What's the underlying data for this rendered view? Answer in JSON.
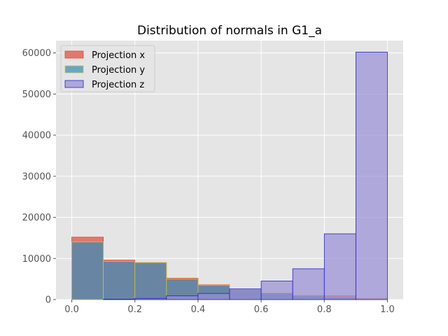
{
  "chart_data": {
    "type": "histogram",
    "title": "Distribution of normals in G1_a",
    "xlabel": "",
    "ylabel": "",
    "xlim": [
      -0.05,
      1.05
    ],
    "ylim": [
      0,
      63000
    ],
    "xticks": [
      0.0,
      0.2,
      0.4,
      0.6,
      0.8,
      1.0
    ],
    "xtick_labels": [
      "0.0",
      "0.2",
      "0.4",
      "0.6",
      "0.8",
      "1.0"
    ],
    "yticks": [
      0,
      10000,
      20000,
      30000,
      40000,
      50000,
      60000
    ],
    "ytick_labels": [
      "0",
      "10000",
      "20000",
      "30000",
      "40000",
      "50000",
      "60000"
    ],
    "bin_edges": [
      0.0,
      0.1,
      0.2,
      0.3,
      0.4,
      0.5,
      0.6,
      0.7,
      0.8,
      0.9,
      1.0
    ],
    "grid": true,
    "legend_position": "top-left",
    "series": [
      {
        "name": "Projection x",
        "values": [
          15200,
          9600,
          9000,
          5200,
          3600,
          2500,
          1500,
          1000,
          900,
          300
        ],
        "fill": "#E24A33",
        "stroke": "#E24A33",
        "fill_opacity": 0.7
      },
      {
        "name": "Projection y",
        "values": [
          14000,
          9300,
          9000,
          5000,
          3500,
          2500,
          1600,
          1000,
          600,
          200
        ],
        "fill": "#348ABD",
        "stroke": "#C8C832",
        "fill_opacity": 0.7
      },
      {
        "name": "Projection z",
        "values": [
          0,
          100,
          300,
          900,
          1500,
          2600,
          4500,
          7500,
          16000,
          60200
        ],
        "fill": "#988ED5",
        "stroke": "#2020D0",
        "fill_opacity": 0.7
      }
    ]
  }
}
